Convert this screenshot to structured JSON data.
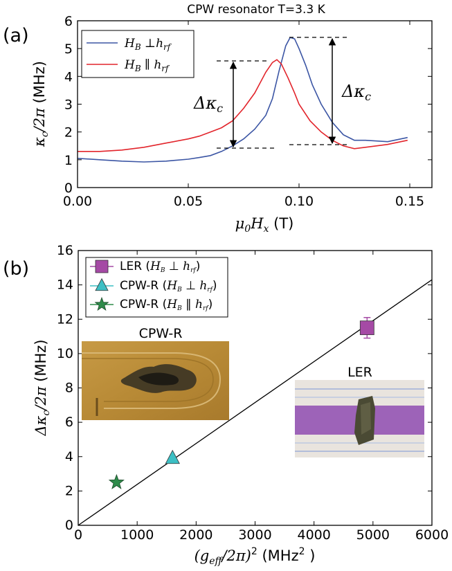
{
  "title": "CPW resonator  T=3.3 K",
  "chart_data": [
    {
      "panel_label": "(a)",
      "type": "line",
      "xlabel": "μ0Hx  (T)",
      "ylabel": "κc/2π (MHz)",
      "xlim": [
        0.0,
        0.16
      ],
      "ylim": [
        0,
        6
      ],
      "xticks": [
        "0.00",
        "0.05",
        "0.10",
        "0.15"
      ],
      "yticks": [
        "0",
        "1",
        "2",
        "3",
        "4",
        "5",
        "6"
      ],
      "grid": false,
      "legend_placement": "top-left",
      "series": [
        {
          "name": "HB ⊥hrf",
          "color": "#3b55a4",
          "x": [
            0.0,
            0.01,
            0.02,
            0.03,
            0.04,
            0.05,
            0.055,
            0.06,
            0.065,
            0.07,
            0.075,
            0.08,
            0.085,
            0.088,
            0.091,
            0.094,
            0.096,
            0.098,
            0.1,
            0.103,
            0.106,
            0.11,
            0.115,
            0.12,
            0.125,
            0.13,
            0.14,
            0.149
          ],
          "y": [
            1.05,
            1.0,
            0.95,
            0.92,
            0.95,
            1.02,
            1.08,
            1.15,
            1.3,
            1.5,
            1.75,
            2.1,
            2.6,
            3.2,
            4.2,
            5.1,
            5.4,
            5.35,
            5.0,
            4.4,
            3.7,
            3.0,
            2.35,
            1.9,
            1.7,
            1.7,
            1.65,
            1.8
          ]
        },
        {
          "name": "HB ∥ hrf",
          "color": "#e2242b",
          "x": [
            0.0,
            0.01,
            0.02,
            0.03,
            0.04,
            0.05,
            0.055,
            0.06,
            0.065,
            0.07,
            0.075,
            0.08,
            0.085,
            0.088,
            0.09,
            0.092,
            0.095,
            0.098,
            0.1,
            0.105,
            0.11,
            0.115,
            0.12,
            0.125,
            0.13,
            0.14,
            0.149
          ],
          "y": [
            1.3,
            1.3,
            1.35,
            1.45,
            1.6,
            1.75,
            1.85,
            2.0,
            2.15,
            2.4,
            2.85,
            3.4,
            4.15,
            4.5,
            4.6,
            4.45,
            3.95,
            3.4,
            3.0,
            2.4,
            2.0,
            1.7,
            1.5,
            1.4,
            1.45,
            1.55,
            1.7
          ]
        }
      ],
      "annotations": [
        {
          "text": "Δκc",
          "from": [
            0.071,
            1.45
          ],
          "to": [
            0.071,
            4.6
          ]
        },
        {
          "text": "Δκc",
          "from": [
            0.115,
            1.6
          ],
          "to": [
            0.115,
            5.45
          ]
        }
      ]
    },
    {
      "panel_label": "(b)",
      "type": "scatter",
      "xlabel": "(geff/2π)²  (MHz² )",
      "ylabel": "Δκc/2π (MHz)",
      "xlim": [
        0,
        6000
      ],
      "ylim": [
        0,
        16
      ],
      "xticks": [
        "0",
        "1000",
        "2000",
        "3000",
        "4000",
        "5000",
        "6000"
      ],
      "yticks": [
        "0",
        "2",
        "4",
        "6",
        "8",
        "10",
        "12",
        "14",
        "16"
      ],
      "grid": false,
      "legend_placement": "top-left",
      "fit_line": {
        "x": [
          0,
          6000
        ],
        "y": [
          0,
          14.3
        ]
      },
      "series": [
        {
          "name": "LER (HB ⊥ hrf)",
          "marker": "square",
          "color": "#a54aa5",
          "x": [
            4900
          ],
          "y": [
            11.5
          ],
          "yerr": [
            0.6
          ]
        },
        {
          "name": "CPW-R (HB ⊥ hrf)",
          "marker": "triangle",
          "color": "#3cbfc4",
          "x": [
            1600
          ],
          "y": [
            3.9
          ]
        },
        {
          "name": "CPW-R (HB ∥ hrf)",
          "marker": "star",
          "color": "#2e8b4a",
          "x": [
            650
          ],
          "y": [
            2.5
          ]
        }
      ],
      "insets": [
        {
          "label": "CPW-R",
          "description_color": "#b88d36"
        },
        {
          "label": "LER",
          "description_color": "#9d63b8"
        }
      ]
    }
  ]
}
